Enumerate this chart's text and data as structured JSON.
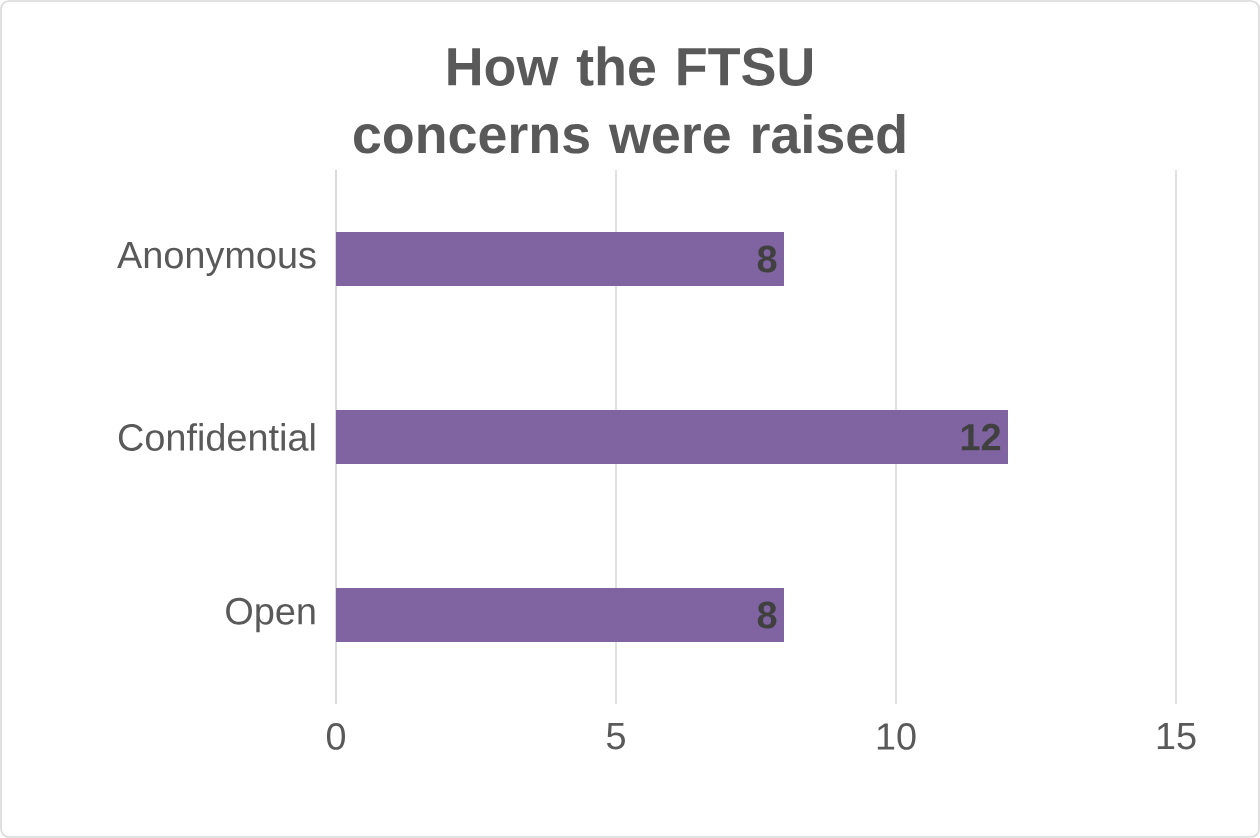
{
  "chart_data": {
    "type": "bar",
    "orientation": "horizontal",
    "title": "How the FTSU concerns were raised",
    "categories": [
      "Anonymous",
      "Confidential",
      "Open"
    ],
    "values": [
      8,
      12,
      8
    ],
    "color": "#8064a2",
    "data_labels": true,
    "xlim": [
      0,
      15
    ],
    "xticks": [
      0,
      5,
      10,
      15
    ],
    "grid": "x"
  }
}
